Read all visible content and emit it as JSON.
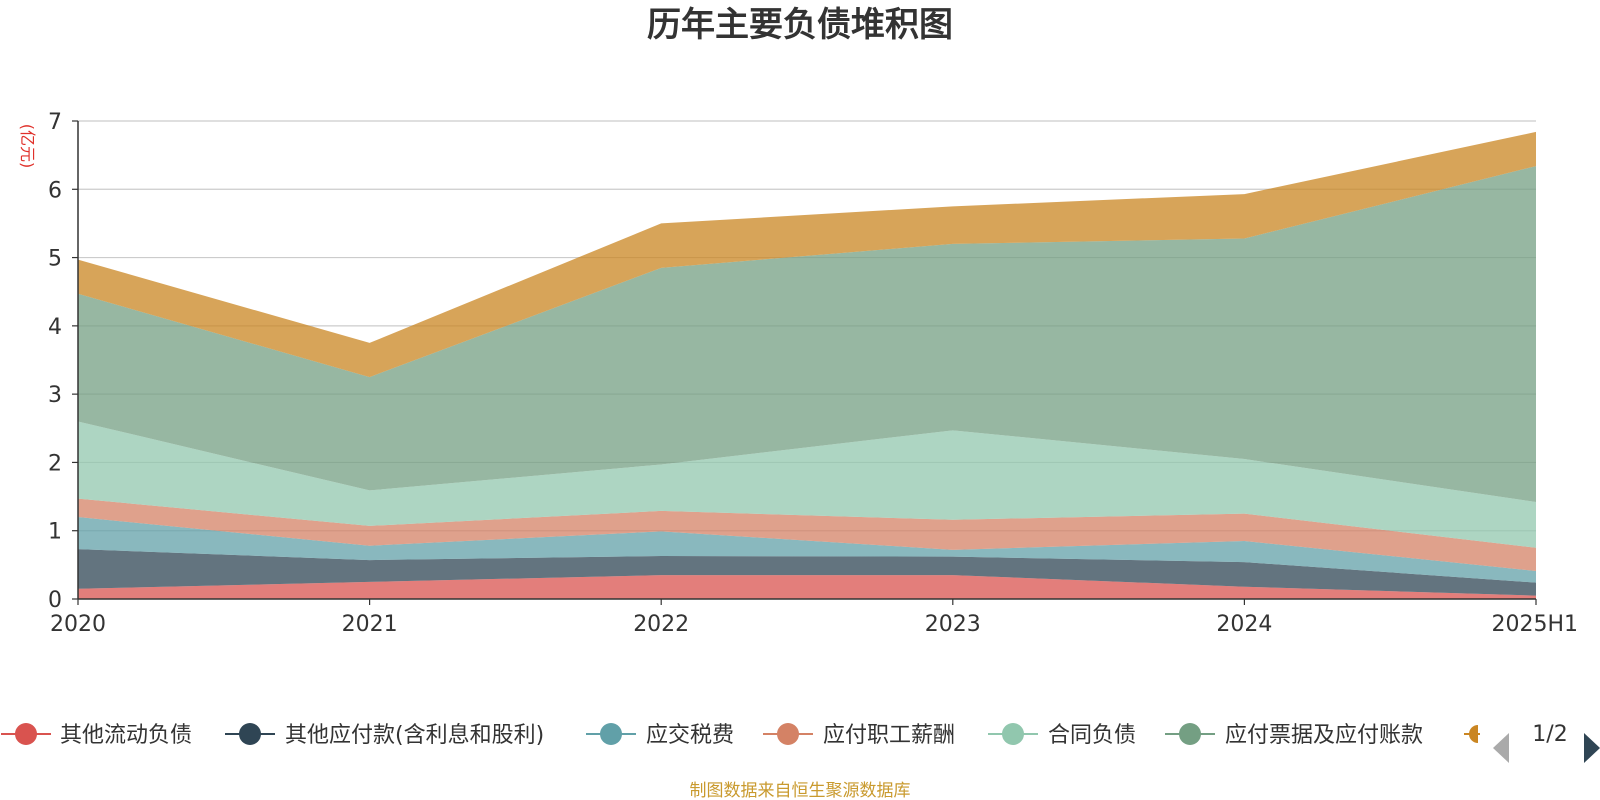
{
  "chart_data": {
    "type": "area",
    "stacked": true,
    "title": "历年主要负债堆积图",
    "unit": "(亿元)",
    "categories": [
      "2020",
      "2021",
      "2022",
      "2023",
      "2024",
      "2025H1"
    ],
    "ylim": [
      0,
      7
    ],
    "yticks": [
      "0",
      "1",
      "2",
      "3",
      "4",
      "5",
      "6",
      "7"
    ],
    "grid": true,
    "legend_position": "bottom",
    "series": [
      {
        "name": "其他流动负债",
        "color": "#d9534f",
        "values": [
          0.15,
          0.25,
          0.35,
          0.35,
          0.18,
          0.05
        ]
      },
      {
        "name": "其他应付款(含利息和股利)",
        "color": "#2f4554",
        "values": [
          0.58,
          0.32,
          0.28,
          0.27,
          0.36,
          0.19
        ]
      },
      {
        "name": "应交税费",
        "color": "#61a0a8",
        "values": [
          0.47,
          0.21,
          0.36,
          0.1,
          0.31,
          0.17
        ]
      },
      {
        "name": "应付职工薪酬",
        "color": "#d48265",
        "values": [
          0.27,
          0.29,
          0.3,
          0.44,
          0.4,
          0.34
        ]
      },
      {
        "name": "合同负债",
        "color": "#91c7ae",
        "values": [
          1.13,
          0.52,
          0.68,
          1.31,
          0.8,
          0.67
        ]
      },
      {
        "name": "应付票据及应付账款",
        "color": "#749f83",
        "values": [
          1.87,
          1.66,
          2.88,
          2.73,
          3.23,
          4.92
        ]
      },
      {
        "name": "",
        "color": "#ca8622",
        "values": [
          0.5,
          0.5,
          0.65,
          0.55,
          0.65,
          0.5
        ]
      }
    ],
    "legend_visible": [
      "其他流动负债",
      "其他应付款(含利息和股利)",
      "应交税费",
      "应付职工薪酬",
      "合同负债",
      "应付票据及应付账款"
    ],
    "legend_page": "1/2"
  },
  "footer": {
    "source": "制图数据来自恒生聚源数据库"
  }
}
